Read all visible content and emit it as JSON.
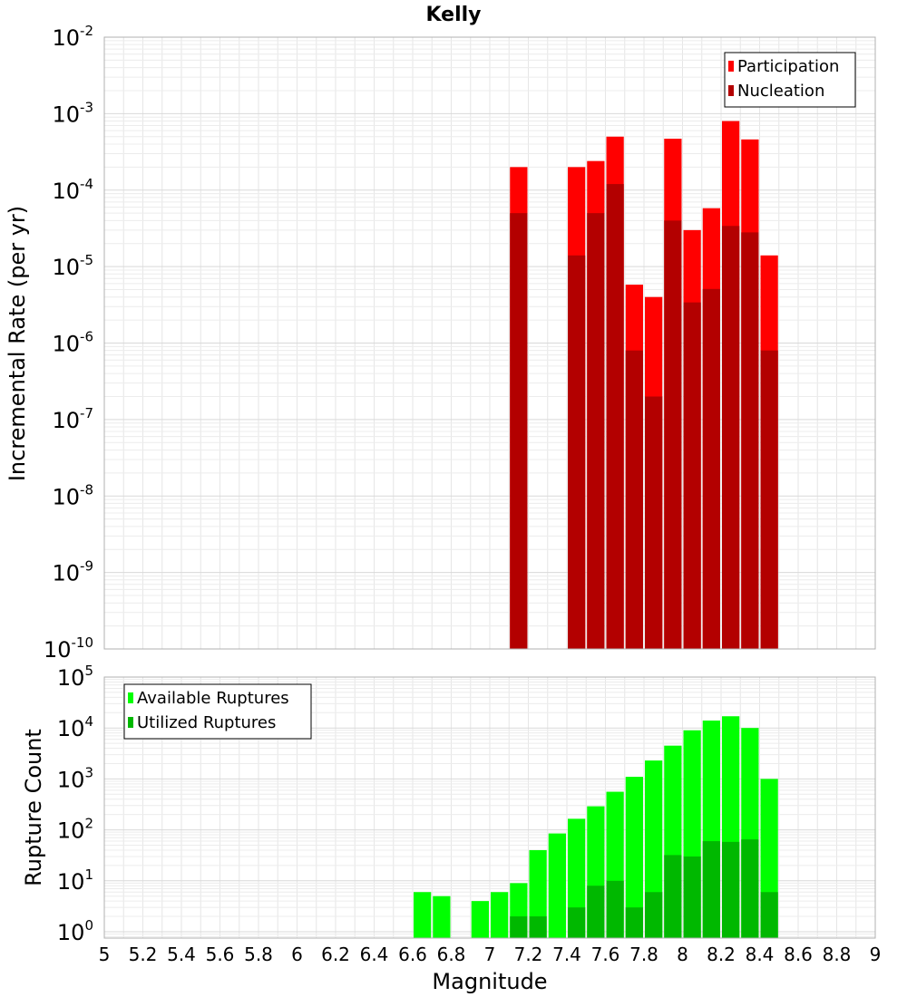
{
  "chart_data": [
    {
      "type": "bar",
      "title": "Kelly",
      "ylabel": "Incremental Rate (per yr)",
      "xlabel": "",
      "y_scale": "log",
      "ylim": [
        1e-10,
        0.01
      ],
      "xlim": [
        5,
        9
      ],
      "bin_width": 0.1,
      "grid": true,
      "legend_position": "top-right",
      "y_ticks": [
        {
          "base": "10",
          "exp": "-10"
        },
        {
          "base": "10",
          "exp": "-9"
        },
        {
          "base": "10",
          "exp": "-8"
        },
        {
          "base": "10",
          "exp": "-7"
        },
        {
          "base": "10",
          "exp": "-6"
        },
        {
          "base": "10",
          "exp": "-5"
        },
        {
          "base": "10",
          "exp": "-4"
        },
        {
          "base": "10",
          "exp": "-3"
        },
        {
          "base": "10",
          "exp": "-2"
        }
      ],
      "x": [
        7.15,
        7.45,
        7.55,
        7.65,
        7.75,
        7.85,
        7.95,
        8.05,
        8.15,
        8.25,
        8.35,
        8.45
      ],
      "series": [
        {
          "name": "Participation",
          "color": "#ff0000",
          "values": [
            0.0002,
            0.0002,
            0.00024,
            0.0005,
            5.8e-06,
            4e-06,
            0.00047,
            3e-05,
            5.8e-05,
            0.0008,
            0.00046,
            1.4e-05
          ]
        },
        {
          "name": "Nucleation",
          "color": "#b30000",
          "values": [
            5e-05,
            1.4e-05,
            5e-05,
            0.00012,
            8e-07,
            2e-07,
            4e-05,
            3.4e-06,
            5.1e-06,
            3.4e-05,
            2.8e-05,
            8e-07
          ]
        }
      ]
    },
    {
      "type": "bar",
      "title": "",
      "ylabel": "Rupture Count",
      "xlabel": "Magnitude",
      "y_scale": "log",
      "ylim": [
        0.75,
        100000
      ],
      "xlim": [
        5,
        9
      ],
      "bin_width": 0.1,
      "grid": true,
      "legend_position": "top-left",
      "y_ticks": [
        {
          "base": "10",
          "exp": "0",
          "value": 1
        },
        {
          "base": "10",
          "exp": "1",
          "value": 10
        },
        {
          "base": "10",
          "exp": "2",
          "value": 100
        },
        {
          "base": "10",
          "exp": "3",
          "value": 1000
        },
        {
          "base": "10",
          "exp": "4",
          "value": 10000
        },
        {
          "base": "10",
          "exp": "5",
          "value": 100000
        }
      ],
      "x_ticks": [
        "5",
        "5.2",
        "5.4",
        "5.6",
        "5.8",
        "6",
        "6.2",
        "6.4",
        "6.6",
        "6.8",
        "7",
        "7.2",
        "7.4",
        "7.6",
        "7.8",
        "8",
        "8.2",
        "8.4",
        "8.6",
        "8.8",
        "9"
      ],
      "x": [
        6.65,
        6.75,
        6.95,
        7.05,
        7.15,
        7.25,
        7.35,
        7.45,
        7.55,
        7.65,
        7.75,
        7.85,
        7.95,
        8.05,
        8.15,
        8.25,
        8.35,
        8.45
      ],
      "series": [
        {
          "name": "Available Ruptures",
          "color": "#00ff00",
          "values": [
            6,
            5,
            4,
            6,
            9,
            40,
            85,
            165,
            290,
            560,
            1100,
            2300,
            4500,
            9000,
            14000,
            17000,
            10000,
            1000
          ]
        },
        {
          "name": "Utilized Ruptures",
          "color": "#00b800",
          "values": [
            null,
            null,
            null,
            null,
            2,
            2,
            null,
            3,
            8,
            10,
            3,
            6,
            32,
            30,
            60,
            58,
            65,
            6
          ]
        }
      ]
    }
  ]
}
